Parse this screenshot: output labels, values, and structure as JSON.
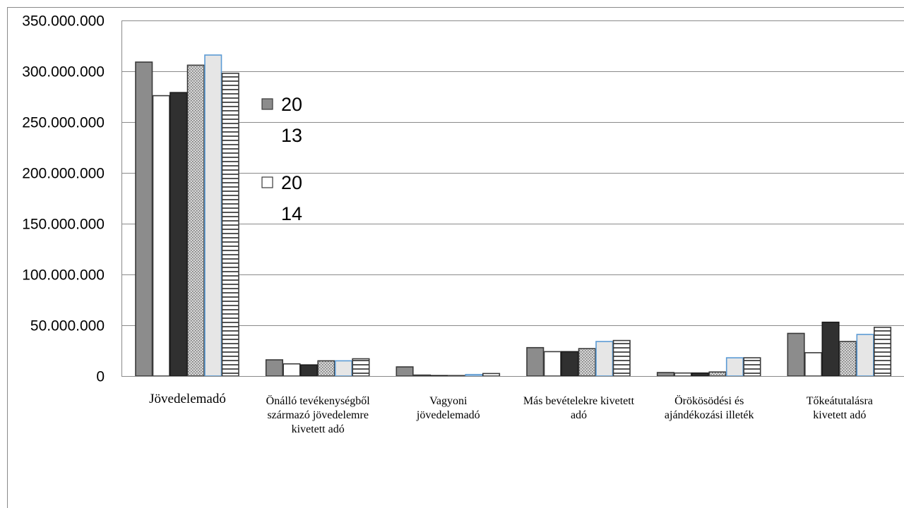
{
  "chart_data": {
    "type": "bar",
    "ylim": [
      0,
      350000000
    ],
    "yticks": [
      0,
      50000000,
      100000000,
      150000000,
      200000000,
      250000000,
      300000000,
      350000000
    ],
    "ytick_labels": [
      "0",
      "50.000.000",
      "100.000.000",
      "150.000.000",
      "200.000.000",
      "250.000.000",
      "300.000.000",
      "350.000.000"
    ],
    "grid": true,
    "categories": [
      [
        "Jövedelemadó"
      ],
      [
        "Önálló tevékenységből",
        "származó jövedelemre",
        "kivetett adó"
      ],
      [
        "Vagyoni",
        "jövedelemadó"
      ],
      [
        "Más bevételekre kivetett",
        "adó"
      ],
      [
        "Örökösödési és",
        "ajándékozási illeték"
      ],
      [
        "Tőkeátutalásra",
        "kivetett adó"
      ]
    ],
    "series": [
      {
        "name": "2013",
        "values": [
          309000000,
          16000000,
          9000000,
          28000000,
          3500000,
          42000000
        ]
      },
      {
        "name": "2014",
        "values": [
          276000000,
          12000000,
          1000000,
          24000000,
          3000000,
          23000000
        ]
      },
      {
        "values": [
          279000000,
          11000000,
          500000,
          24000000,
          3000000,
          53000000
        ]
      },
      {
        "values": [
          306000000,
          15000000,
          500000,
          27000000,
          4000000,
          34000000
        ]
      },
      {
        "values": [
          316000000,
          15000000,
          1500000,
          34000000,
          18000000,
          41000000
        ]
      },
      {
        "values": [
          298000000,
          17000000,
          2500000,
          35000000,
          18000000,
          48000000
        ]
      }
    ],
    "legend": {
      "position": "right-inside",
      "entries": [
        {
          "lines": [
            "20",
            "13"
          ],
          "series": 0
        },
        {
          "lines": [
            "20",
            "14"
          ],
          "series": 1
        }
      ]
    }
  }
}
